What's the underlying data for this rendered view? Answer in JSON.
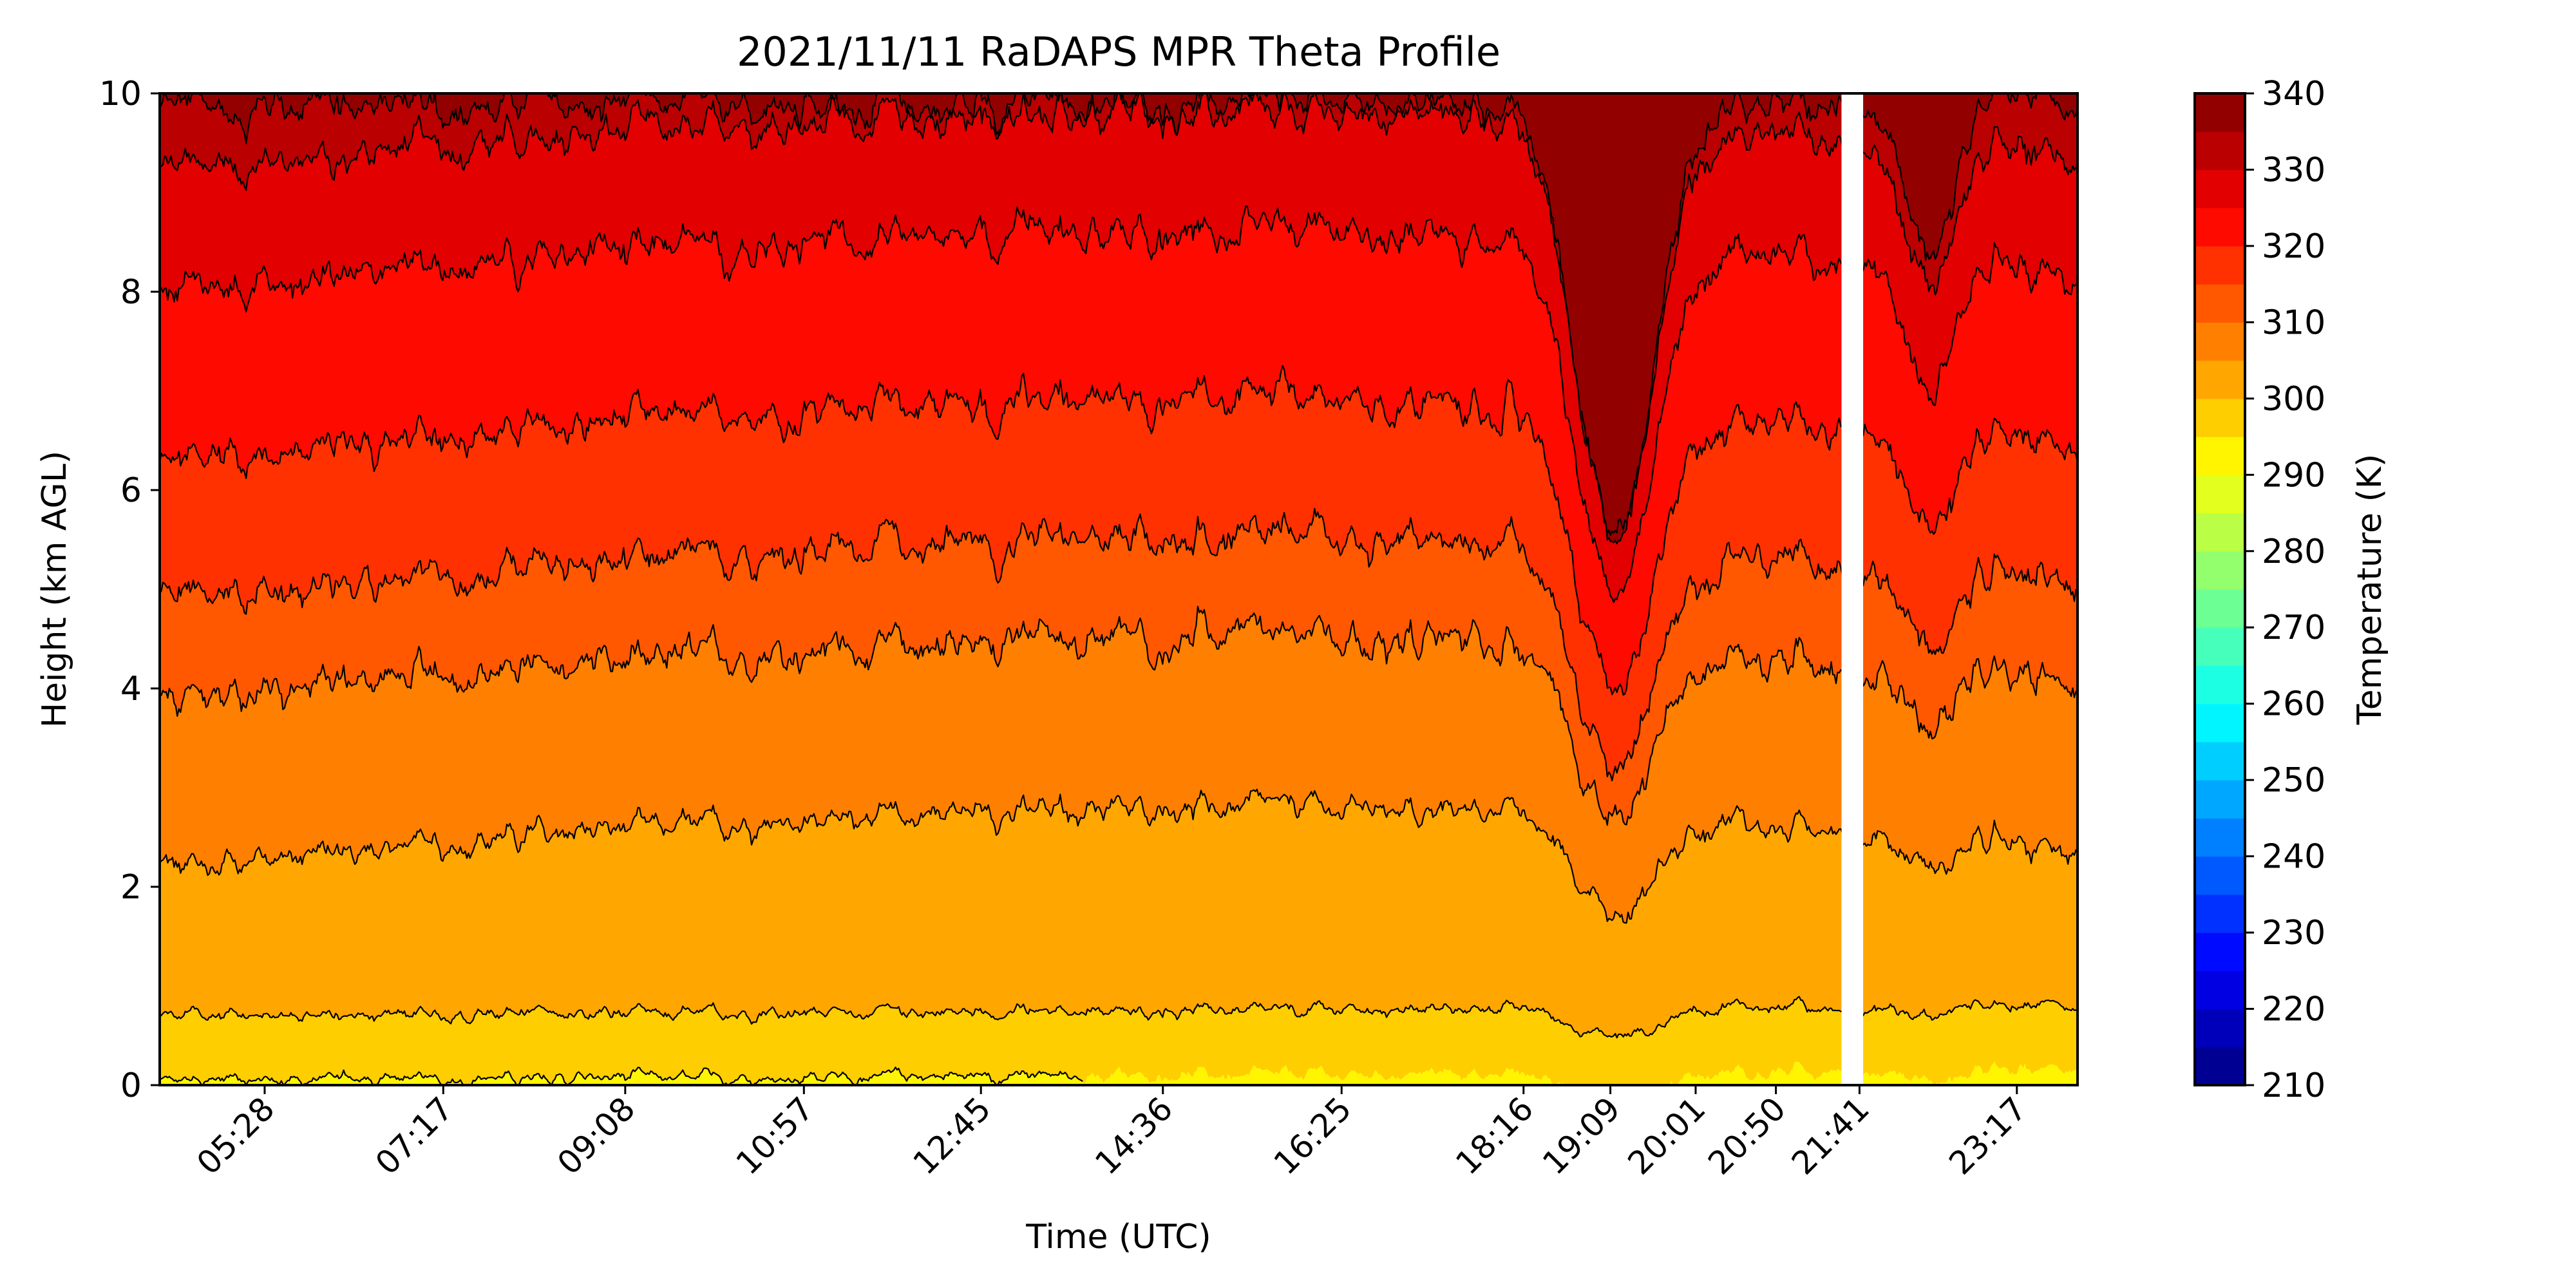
{
  "chart_data": {
    "type": "heatmap",
    "subtype": "filled-contour",
    "title": "2021/11/11 RaDAPS MPR Theta Profile",
    "xlabel": "Time (UTC)",
    "ylabel": "Height (km AGL)",
    "x_tick_labels": [
      "05:28",
      "07:17",
      "09:08",
      "10:57",
      "12:45",
      "14:36",
      "16:25",
      "18:16",
      "19:09",
      "20:01",
      "20:50",
      "21:41",
      "23:17"
    ],
    "x_tick_hours": [
      5.467,
      7.283,
      9.133,
      10.95,
      12.75,
      14.6,
      16.417,
      18.267,
      19.15,
      20.017,
      20.833,
      21.683,
      23.283
    ],
    "xlim_hours": [
      4.4,
      23.9
    ],
    "xtick_label_rotation_deg": 45,
    "y_tick_labels": [
      "0",
      "2",
      "4",
      "6",
      "8",
      "10"
    ],
    "y_ticks": [
      0,
      2,
      4,
      6,
      8,
      10
    ],
    "ylim": [
      0,
      10
    ],
    "colorbar": {
      "label": "Temperature (K)",
      "tick_labels": [
        "210",
        "220",
        "230",
        "240",
        "250",
        "260",
        "270",
        "280",
        "290",
        "300",
        "310",
        "320",
        "330",
        "340"
      ],
      "ticks": [
        210,
        220,
        230,
        240,
        250,
        260,
        270,
        280,
        290,
        300,
        310,
        320,
        330,
        340
      ],
      "range": [
        210,
        340
      ],
      "level_step": 5,
      "colormap": "jet"
    },
    "contour_levels": [
      {
        "level": 295,
        "mean_height_km": 0.05,
        "end_hour": 13.8
      },
      {
        "level": 300,
        "mean_height_km": 0.7
      },
      {
        "level": 305,
        "mean_height_km": 2.2
      },
      {
        "level": 310,
        "mean_height_km": 3.9
      },
      {
        "level": 315,
        "mean_height_km": 4.9
      },
      {
        "level": 320,
        "mean_height_km": 6.3
      },
      {
        "level": 325,
        "mean_height_km": 8.0
      },
      {
        "level": 330,
        "mean_height_km": 9.2
      },
      {
        "level": 335,
        "mean_height_km": 9.85
      }
    ],
    "data_gap_hours": [
      21.5,
      21.72
    ]
  }
}
